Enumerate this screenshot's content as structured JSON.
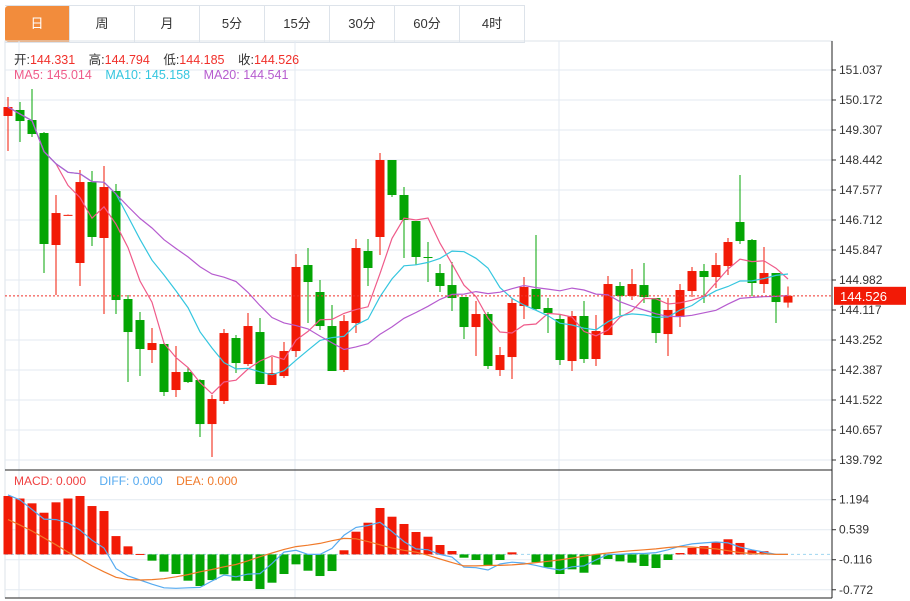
{
  "tabs": [
    "日",
    "周",
    "月",
    "5分",
    "15分",
    "30分",
    "60分",
    "4时"
  ],
  "active_tab": 0,
  "ohlc": {
    "open_label": "开:",
    "open": "144.331",
    "high_label": "高:",
    "high": "144.794",
    "low_label": "低:",
    "low": "144.185",
    "close_label": "收:",
    "close": "144.526"
  },
  "ma": {
    "ma5": "MA5: 145.014",
    "ma10": "MA10: 145.158",
    "ma20": "MA20: 144.541"
  },
  "macd_legend": {
    "macd": "MACD: 0.000",
    "diff": "DIFF: 0.000",
    "dea": "DEA: 0.000"
  },
  "colors": {
    "up": "#f21a06",
    "down": "#04a504",
    "ma5": "#ef5b8a",
    "ma10": "#35c6df",
    "ma20": "#b65ccf",
    "diff": "#55aaf0",
    "dea": "#f07a2a",
    "accent": "#f28c3c"
  },
  "price_axis": {
    "ticks": [
      "151.037",
      "150.172",
      "149.307",
      "148.442",
      "147.577",
      "146.712",
      "145.847",
      "144.982",
      "144.117",
      "143.252",
      "142.387",
      "141.522",
      "140.657",
      "139.792"
    ],
    "max": 151.037,
    "min": 139.792
  },
  "current_price": "144.526",
  "macd_axis": {
    "ticks": [
      "1.194",
      "0.539",
      "-0.116",
      "-0.772"
    ]
  },
  "chart_data": {
    "type": "candlestick",
    "ohlc": [
      [
        149.711,
        150.258,
        148.701,
        149.97
      ],
      [
        149.884,
        150.114,
        148.961,
        149.566
      ],
      [
        149.595,
        150.489,
        149.105,
        149.192
      ],
      [
        149.22,
        149.249,
        145.183,
        146.02
      ],
      [
        145.991,
        147.433,
        144.549,
        146.913
      ],
      [
        146.856,
        146.87,
        146.84,
        146.86
      ],
      [
        145.472,
        148.154,
        144.809,
        147.807
      ],
      [
        147.807,
        148.125,
        145.962,
        146.222
      ],
      [
        146.193,
        148.269,
        144.001,
        147.663
      ],
      [
        147.548,
        147.75,
        144.001,
        144.405
      ],
      [
        144.434,
        144.549,
        142.04,
        143.482
      ],
      [
        143.828,
        144.059,
        142.213,
        142.992
      ],
      [
        142.963,
        143.598,
        142.588,
        143.165
      ],
      [
        143.136,
        143.165,
        141.637,
        141.752
      ],
      [
        141.81,
        143.079,
        141.608,
        142.329
      ],
      [
        142.329,
        142.473,
        142.012,
        142.04
      ],
      [
        142.098,
        142.12,
        140.454,
        140.829
      ],
      [
        140.829,
        141.666,
        139.878,
        141.55
      ],
      [
        141.493,
        143.569,
        141.406,
        143.453
      ],
      [
        143.309,
        143.395,
        142.3,
        142.588
      ],
      [
        142.559,
        144.03,
        142.502,
        143.655
      ],
      [
        143.482,
        143.886,
        141.983,
        141.983
      ],
      [
        141.954,
        142.761,
        141.954,
        142.3
      ],
      [
        142.213,
        143.194,
        142.155,
        142.934
      ],
      [
        142.934,
        145.731,
        142.761,
        145.357
      ],
      [
        145.414,
        145.904,
        143.742,
        144.924
      ],
      [
        144.636,
        144.982,
        143.54,
        143.655
      ],
      [
        143.655,
        144.261,
        142.358,
        142.358
      ],
      [
        142.387,
        143.972,
        142.329,
        143.799
      ],
      [
        143.742,
        146.164,
        143.453,
        145.904
      ],
      [
        145.818,
        146.164,
        144.809,
        145.328
      ],
      [
        146.222,
        148.644,
        145.702,
        148.442
      ],
      [
        148.442,
        148.442,
        147.375,
        147.433
      ],
      [
        147.433,
        147.663,
        145.616,
        146.712
      ],
      [
        146.683,
        146.683,
        145.414,
        145.645
      ],
      [
        145.645,
        146.077,
        144.924,
        145.616
      ],
      [
        145.183,
        145.443,
        144.636,
        144.809
      ],
      [
        144.837,
        145.501,
        144.088,
        144.462
      ],
      [
        144.491,
        144.491,
        143.28,
        143.626
      ],
      [
        143.626,
        144.376,
        142.79,
        144.001
      ],
      [
        144.001,
        144.059,
        142.415,
        142.502
      ],
      [
        142.387,
        143.05,
        142.213,
        142.819
      ],
      [
        142.761,
        144.434,
        142.127,
        144.319
      ],
      [
        144.232,
        145.068,
        143.857,
        144.78
      ],
      [
        144.722,
        146.279,
        144.117,
        144.146
      ],
      [
        144.174,
        144.462,
        143.453,
        144.03
      ],
      [
        143.857,
        143.972,
        142.531,
        142.675
      ],
      [
        142.646,
        144.088,
        142.358,
        143.944
      ],
      [
        143.944,
        144.376,
        142.588,
        142.704
      ],
      [
        142.704,
        143.972,
        142.502,
        143.511
      ],
      [
        143.395,
        145.097,
        143.395,
        144.866
      ],
      [
        144.809,
        144.924,
        143.972,
        144.52
      ],
      [
        144.52,
        145.299,
        144.405,
        144.866
      ],
      [
        144.837,
        145.472,
        144.319,
        144.491
      ],
      [
        144.462,
        144.462,
        143.165,
        143.453
      ],
      [
        143.424,
        144.462,
        142.79,
        144.117
      ],
      [
        143.915,
        144.866,
        143.626,
        144.693
      ],
      [
        144.664,
        145.357,
        144.491,
        145.241
      ],
      [
        145.241,
        145.443,
        144.319,
        145.068
      ],
      [
        145.068,
        145.76,
        144.751,
        145.414
      ],
      [
        145.385,
        146.193,
        145.126,
        146.077
      ],
      [
        146.654,
        148.009,
        146.02,
        146.106
      ],
      [
        146.135,
        146.164,
        144.52,
        144.895
      ],
      [
        144.866,
        145.933,
        144.607,
        145.183
      ],
      [
        145.183,
        145.183,
        143.742,
        144.347
      ],
      [
        144.331,
        144.794,
        144.185,
        144.526
      ]
    ],
    "ma_periods": [
      5,
      10,
      20
    ],
    "macd_hist": [
      1.275,
      1.22,
      1.115,
      0.91,
      1.137,
      1.22,
      1.275,
      1.056,
      0.947,
      0.4,
      0.176,
      0.01,
      -0.137,
      -0.377,
      -0.428,
      -0.574,
      -0.69,
      -0.56,
      -0.435,
      -0.574,
      -0.58,
      -0.755,
      -0.618,
      -0.428,
      -0.217,
      -0.356,
      -0.472,
      -0.363,
      0.09,
      0.496,
      0.692,
      1.013,
      0.823,
      0.664,
      0.489,
      0.386,
      0.205,
      0.074,
      -0.072,
      -0.122,
      -0.231,
      -0.122,
      0.045,
      0,
      -0.172,
      -0.282,
      -0.428,
      -0.326,
      -0.4,
      -0.224,
      -0.1,
      -0.151,
      -0.181,
      -0.253,
      -0.297,
      -0.122,
      0.03,
      0.14,
      0.18,
      0.26,
      0.33,
      0.25,
      0.09,
      0.07,
      0,
      0
    ],
    "diff": [
      1.3,
      1.19,
      0.98,
      0.77,
      0.76,
      0.69,
      0.53,
      0.31,
      0.14,
      -0.31,
      -0.47,
      -0.56,
      -0.65,
      -0.73,
      -0.74,
      -0.73,
      -0.72,
      -0.58,
      -0.45,
      -0.49,
      -0.43,
      -0.42,
      -0.2,
      0.05,
      0.09,
      0.0,
      0.0,
      0.13,
      0.42,
      0.59,
      0.63,
      0.7,
      0.5,
      0.28,
      0.12,
      0.1,
      0.0,
      -0.06,
      -0.28,
      -0.29,
      -0.34,
      -0.21,
      -0.17,
      -0.19,
      -0.24,
      -0.3,
      -0.34,
      -0.27,
      -0.25,
      -0.12,
      0.0,
      0.0,
      0.02,
      0.02,
      0.04,
      0.1,
      0.18,
      0.23,
      0.25,
      0.27,
      0.25,
      0.16,
      0.1,
      0.05,
      0.0,
      0.0
    ],
    "dea": [
      0.76,
      0.64,
      0.51,
      0.36,
      0.21,
      0.05,
      -0.1,
      -0.25,
      -0.38,
      -0.5,
      -0.55,
      -0.56,
      -0.55,
      -0.53,
      -0.49,
      -0.44,
      -0.38,
      -0.33,
      -0.27,
      -0.22,
      -0.14,
      -0.05,
      0.03,
      0.11,
      0.17,
      0.2,
      0.24,
      0.3,
      0.35,
      0.34,
      0.28,
      0.21,
      0.14,
      0.09,
      0.05,
      -0.02,
      -0.1,
      -0.18,
      -0.25,
      -0.25,
      -0.24,
      -0.24,
      -0.23,
      -0.21,
      -0.18,
      -0.15,
      -0.12,
      -0.08,
      -0.04,
      0.0,
      0.03,
      0.06,
      0.08,
      0.1,
      0.12,
      0.15,
      0.17,
      0.16,
      0.14,
      0.12,
      0.08,
      0.04,
      0.02,
      0.01,
      0.0,
      0.0
    ],
    "macd_range": [
      -0.772,
      1.194
    ]
  }
}
